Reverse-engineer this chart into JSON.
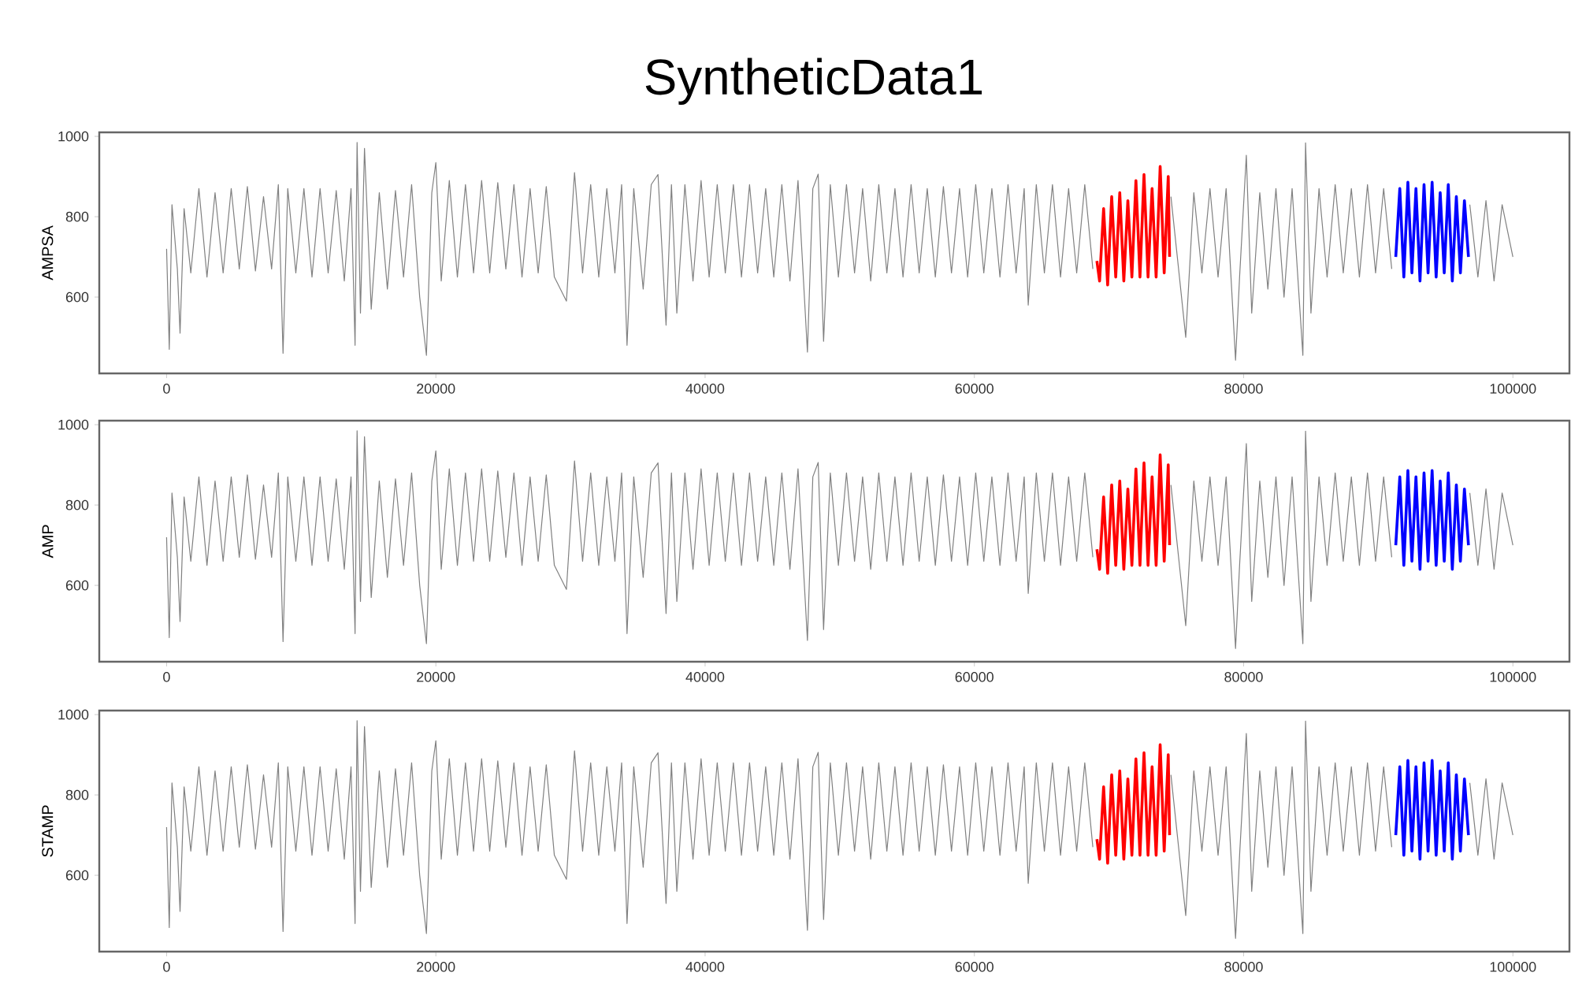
{
  "chart_data": [
    {
      "type": "line",
      "title": "SyntheticData1",
      "ylabel": "AMPSA",
      "xlim": [
        -5000,
        104200
      ],
      "ylim": [
        410,
        1010
      ],
      "xticks": [
        0,
        20000,
        40000,
        60000,
        80000,
        100000
      ],
      "yticks": [
        600,
        800,
        1000
      ],
      "series": [
        {
          "color": "#808080",
          "x": [
            0,
            200,
            400,
            800,
            1000,
            1300,
            1800,
            2400,
            3000,
            3600,
            4200,
            4800,
            5400,
            6000,
            6600,
            7200,
            7800,
            8300,
            8650,
            9000,
            9600,
            10200,
            10800,
            11400,
            12000,
            12600,
            13200,
            13700,
            14000,
            14150,
            14400,
            14700,
            15200,
            15800,
            16400,
            17000,
            17600,
            18200,
            18800,
            19300,
            19700,
            20000,
            20400,
            21000,
            21600,
            22200,
            22800,
            23400,
            24000,
            24600,
            25200,
            25800,
            26400,
            27000,
            27600,
            28200,
            28800,
            29700,
            30300,
            30900,
            31500,
            32100,
            32700,
            33300,
            33800,
            34200,
            34700,
            35400,
            36000,
            36500,
            37100,
            37500,
            37900,
            38500,
            39100,
            39700,
            40300,
            40900,
            41500,
            42100,
            42700,
            43300,
            43900,
            44500,
            45100,
            45700,
            46300,
            46900,
            47600,
            48000,
            48400,
            48800,
            49300,
            49900,
            50500,
            51100,
            51700,
            52300,
            52900,
            53500,
            54100,
            54700,
            55300,
            55900,
            56500,
            57100,
            57700,
            58300,
            58900,
            59500,
            60100,
            60700,
            61300,
            61900,
            62500,
            63100,
            63700,
            64000,
            64600,
            65200,
            65800,
            66400,
            67000,
            67600,
            68200,
            68800,
            69000,
            74600,
            75200,
            75700,
            76300,
            76900,
            77500,
            78100,
            78700,
            79400,
            79700,
            80200,
            80600,
            81200,
            81800,
            82400,
            83000,
            83600,
            84400,
            84600,
            85000,
            85600,
            86200,
            86800,
            87400,
            88000,
            88600,
            89200,
            89800,
            90400,
            91000,
            91200,
            96800,
            97400,
            98000,
            98600,
            99200,
            99999
          ],
          "values": [
            720,
            470,
            830,
            670,
            510,
            820,
            660,
            870,
            650,
            860,
            660,
            870,
            670,
            875,
            665,
            850,
            670,
            880,
            460,
            870,
            660,
            870,
            650,
            870,
            660,
            865,
            640,
            870,
            480,
            985,
            560,
            970,
            570,
            860,
            620,
            865,
            650,
            880,
            600,
            455,
            860,
            935,
            640,
            890,
            650,
            880,
            660,
            890,
            660,
            885,
            670,
            880,
            650,
            870,
            660,
            875,
            650,
            590,
            910,
            660,
            880,
            650,
            870,
            660,
            880,
            480,
            870,
            620,
            880,
            905,
            530,
            880,
            560,
            880,
            640,
            890,
            650,
            880,
            660,
            880,
            650,
            880,
            660,
            870,
            650,
            880,
            640,
            890,
            463,
            870,
            906,
            490,
            880,
            650,
            880,
            660,
            870,
            640,
            880,
            660,
            870,
            650,
            880,
            660,
            870,
            650,
            875,
            660,
            870,
            650,
            880,
            660,
            870,
            650,
            880,
            660,
            870,
            580,
            880,
            660,
            880,
            650,
            870,
            660,
            880,
            670,
            null,
            850,
            660,
            500,
            860,
            660,
            870,
            650,
            870,
            443,
            650,
            953,
            560,
            860,
            620,
            870,
            600,
            870,
            455,
            984,
            560,
            870,
            650,
            880,
            660,
            870,
            650,
            880,
            660,
            870,
            670,
            null,
            830,
            650,
            840,
            640,
            830,
            700
          ]
        },
        {
          "color": "#ff0000",
          "x": [
            69100,
            69300,
            69600,
            69900,
            70200,
            70500,
            70800,
            71100,
            71400,
            71700,
            72000,
            72300,
            72600,
            72900,
            73200,
            73500,
            73800,
            74100,
            74400,
            74500
          ],
          "values": [
            690,
            640,
            820,
            630,
            850,
            650,
            860,
            640,
            840,
            650,
            890,
            650,
            905,
            650,
            870,
            650,
            925,
            660,
            900,
            700
          ]
        },
        {
          "color": "#0000ff",
          "x": [
            91300,
            91600,
            91900,
            92200,
            92500,
            92800,
            93100,
            93400,
            93700,
            94000,
            94300,
            94600,
            94900,
            95200,
            95500,
            95800,
            96100,
            96400,
            96700
          ],
          "values": [
            700,
            870,
            650,
            886,
            660,
            870,
            640,
            880,
            660,
            886,
            650,
            860,
            660,
            880,
            640,
            850,
            660,
            840,
            700
          ]
        }
      ]
    },
    {
      "type": "line",
      "ylabel": "AMP",
      "xlim": [
        -5000,
        104200
      ],
      "ylim": [
        410,
        1010
      ],
      "xticks": [
        0,
        20000,
        40000,
        60000,
        80000,
        100000
      ],
      "yticks": [
        600,
        800,
        1000
      ],
      "series": [
        {
          "color": "#808080",
          "x": [
            0,
            200,
            400,
            800,
            1000,
            1300,
            1800,
            2400,
            3000,
            3600,
            4200,
            4800,
            5400,
            6000,
            6600,
            7200,
            7800,
            8300,
            8650,
            9000,
            9600,
            10200,
            10800,
            11400,
            12000,
            12600,
            13200,
            13700,
            14000,
            14150,
            14400,
            14700,
            15200,
            15800,
            16400,
            17000,
            17600,
            18200,
            18800,
            19300,
            19700,
            20000,
            20400,
            21000,
            21600,
            22200,
            22800,
            23400,
            24000,
            24600,
            25200,
            25800,
            26400,
            27000,
            27600,
            28200,
            28800,
            29700,
            30300,
            30900,
            31500,
            32100,
            32700,
            33300,
            33800,
            34200,
            34700,
            35400,
            36000,
            36500,
            37100,
            37500,
            37900,
            38500,
            39100,
            39700,
            40300,
            40900,
            41500,
            42100,
            42700,
            43300,
            43900,
            44500,
            45100,
            45700,
            46300,
            46900,
            47600,
            48000,
            48400,
            48800,
            49300,
            49900,
            50500,
            51100,
            51700,
            52300,
            52900,
            53500,
            54100,
            54700,
            55300,
            55900,
            56500,
            57100,
            57700,
            58300,
            58900,
            59500,
            60100,
            60700,
            61300,
            61900,
            62500,
            63100,
            63700,
            64000,
            64600,
            65200,
            65800,
            66400,
            67000,
            67600,
            68200,
            68800,
            69000,
            74600,
            75200,
            75700,
            76300,
            76900,
            77500,
            78100,
            78700,
            79400,
            79700,
            80200,
            80600,
            81200,
            81800,
            82400,
            83000,
            83600,
            84400,
            84600,
            85000,
            85600,
            86200,
            86800,
            87400,
            88000,
            88600,
            89200,
            89800,
            90400,
            91000,
            91200,
            96800,
            97400,
            98000,
            98600,
            99200,
            99999
          ],
          "values": [
            720,
            470,
            830,
            670,
            510,
            820,
            660,
            870,
            650,
            860,
            660,
            870,
            670,
            875,
            665,
            850,
            670,
            880,
            460,
            870,
            660,
            870,
            650,
            870,
            660,
            865,
            640,
            870,
            480,
            985,
            560,
            970,
            570,
            860,
            620,
            865,
            650,
            880,
            600,
            455,
            860,
            935,
            640,
            890,
            650,
            880,
            660,
            890,
            660,
            885,
            670,
            880,
            650,
            870,
            660,
            875,
            650,
            590,
            910,
            660,
            880,
            650,
            870,
            660,
            880,
            480,
            870,
            620,
            880,
            905,
            530,
            880,
            560,
            880,
            640,
            890,
            650,
            880,
            660,
            880,
            650,
            880,
            660,
            870,
            650,
            880,
            640,
            890,
            463,
            870,
            906,
            490,
            880,
            650,
            880,
            660,
            870,
            640,
            880,
            660,
            870,
            650,
            880,
            660,
            870,
            650,
            875,
            660,
            870,
            650,
            880,
            660,
            870,
            650,
            880,
            660,
            870,
            580,
            880,
            660,
            880,
            650,
            870,
            660,
            880,
            670,
            null,
            850,
            660,
            500,
            860,
            660,
            870,
            650,
            870,
            443,
            650,
            953,
            560,
            860,
            620,
            870,
            600,
            870,
            455,
            984,
            560,
            870,
            650,
            880,
            660,
            870,
            650,
            880,
            660,
            870,
            670,
            null,
            830,
            650,
            840,
            640,
            830,
            700
          ]
        },
        {
          "color": "#ff0000",
          "x": [
            69100,
            69300,
            69600,
            69900,
            70200,
            70500,
            70800,
            71100,
            71400,
            71700,
            72000,
            72300,
            72600,
            72900,
            73200,
            73500,
            73800,
            74100,
            74400,
            74500
          ],
          "values": [
            690,
            640,
            820,
            630,
            850,
            650,
            860,
            640,
            840,
            650,
            890,
            650,
            905,
            650,
            870,
            650,
            925,
            660,
            900,
            700
          ]
        },
        {
          "color": "#0000ff",
          "x": [
            91300,
            91600,
            91900,
            92200,
            92500,
            92800,
            93100,
            93400,
            93700,
            94000,
            94300,
            94600,
            94900,
            95200,
            95500,
            95800,
            96100,
            96400,
            96700
          ],
          "values": [
            700,
            870,
            650,
            886,
            660,
            870,
            640,
            880,
            660,
            886,
            650,
            860,
            660,
            880,
            640,
            850,
            660,
            840,
            700
          ]
        }
      ]
    },
    {
      "type": "line",
      "ylabel": "STAMP",
      "xlim": [
        -5000,
        104200
      ],
      "ylim": [
        410,
        1010
      ],
      "xticks": [
        0,
        20000,
        40000,
        60000,
        80000,
        100000
      ],
      "yticks": [
        600,
        800,
        1000
      ],
      "series": [
        {
          "color": "#808080",
          "x": [
            0,
            200,
            400,
            800,
            1000,
            1300,
            1800,
            2400,
            3000,
            3600,
            4200,
            4800,
            5400,
            6000,
            6600,
            7200,
            7800,
            8300,
            8650,
            9000,
            9600,
            10200,
            10800,
            11400,
            12000,
            12600,
            13200,
            13700,
            14000,
            14150,
            14400,
            14700,
            15200,
            15800,
            16400,
            17000,
            17600,
            18200,
            18800,
            19300,
            19700,
            20000,
            20400,
            21000,
            21600,
            22200,
            22800,
            23400,
            24000,
            24600,
            25200,
            25800,
            26400,
            27000,
            27600,
            28200,
            28800,
            29700,
            30300,
            30900,
            31500,
            32100,
            32700,
            33300,
            33800,
            34200,
            34700,
            35400,
            36000,
            36500,
            37100,
            37500,
            37900,
            38500,
            39100,
            39700,
            40300,
            40900,
            41500,
            42100,
            42700,
            43300,
            43900,
            44500,
            45100,
            45700,
            46300,
            46900,
            47600,
            48000,
            48400,
            48800,
            49300,
            49900,
            50500,
            51100,
            51700,
            52300,
            52900,
            53500,
            54100,
            54700,
            55300,
            55900,
            56500,
            57100,
            57700,
            58300,
            58900,
            59500,
            60100,
            60700,
            61300,
            61900,
            62500,
            63100,
            63700,
            64000,
            64600,
            65200,
            65800,
            66400,
            67000,
            67600,
            68200,
            68800,
            69000,
            74600,
            75200,
            75700,
            76300,
            76900,
            77500,
            78100,
            78700,
            79400,
            79700,
            80200,
            80600,
            81200,
            81800,
            82400,
            83000,
            83600,
            84400,
            84600,
            85000,
            85600,
            86200,
            86800,
            87400,
            88000,
            88600,
            89200,
            89800,
            90400,
            91000,
            91200,
            96800,
            97400,
            98000,
            98600,
            99200,
            99999
          ],
          "values": [
            720,
            470,
            830,
            670,
            510,
            820,
            660,
            870,
            650,
            860,
            660,
            870,
            670,
            875,
            665,
            850,
            670,
            880,
            460,
            870,
            660,
            870,
            650,
            870,
            660,
            865,
            640,
            870,
            480,
            985,
            560,
            970,
            570,
            860,
            620,
            865,
            650,
            880,
            600,
            455,
            860,
            935,
            640,
            890,
            650,
            880,
            660,
            890,
            660,
            885,
            670,
            880,
            650,
            870,
            660,
            875,
            650,
            590,
            910,
            660,
            880,
            650,
            870,
            660,
            880,
            480,
            870,
            620,
            880,
            905,
            530,
            880,
            560,
            880,
            640,
            890,
            650,
            880,
            660,
            880,
            650,
            880,
            660,
            870,
            650,
            880,
            640,
            890,
            463,
            870,
            906,
            490,
            880,
            650,
            880,
            660,
            870,
            640,
            880,
            660,
            870,
            650,
            880,
            660,
            870,
            650,
            875,
            660,
            870,
            650,
            880,
            660,
            870,
            650,
            880,
            660,
            870,
            580,
            880,
            660,
            880,
            650,
            870,
            660,
            880,
            670,
            null,
            850,
            660,
            500,
            860,
            660,
            870,
            650,
            870,
            443,
            650,
            953,
            560,
            860,
            620,
            870,
            600,
            870,
            455,
            984,
            560,
            870,
            650,
            880,
            660,
            870,
            650,
            880,
            660,
            870,
            670,
            null,
            830,
            650,
            840,
            640,
            830,
            700
          ]
        },
        {
          "color": "#ff0000",
          "x": [
            69100,
            69300,
            69600,
            69900,
            70200,
            70500,
            70800,
            71100,
            71400,
            71700,
            72000,
            72300,
            72600,
            72900,
            73200,
            73500,
            73800,
            74100,
            74400,
            74500
          ],
          "values": [
            690,
            640,
            820,
            630,
            850,
            650,
            860,
            640,
            840,
            650,
            890,
            650,
            905,
            650,
            870,
            650,
            925,
            660,
            900,
            700
          ]
        },
        {
          "color": "#0000ff",
          "x": [
            91300,
            91600,
            91900,
            92200,
            92500,
            92800,
            93100,
            93400,
            93700,
            94000,
            94300,
            94600,
            94900,
            95200,
            95500,
            95800,
            96100,
            96400,
            96700
          ],
          "values": [
            700,
            870,
            650,
            886,
            660,
            870,
            640,
            880,
            660,
            886,
            650,
            860,
            660,
            880,
            640,
            850,
            660,
            840,
            700
          ]
        }
      ]
    }
  ]
}
